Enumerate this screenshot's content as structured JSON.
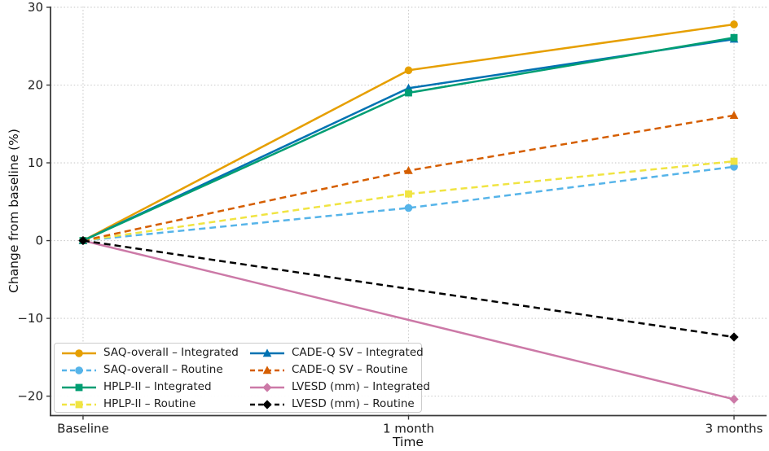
{
  "figure": {
    "background": "#ffffff"
  },
  "chart_data": {
    "type": "line",
    "title": "",
    "xlabel": "Time",
    "ylabel": "Change from baseline (%)",
    "categories": [
      "Baseline",
      "1 month",
      "3 months"
    ],
    "y_ticks": [
      30,
      20,
      10,
      0,
      -10,
      -20
    ],
    "ylim": [
      -22.5,
      30.1
    ],
    "xlim_units": [
      -0.1,
      2.1
    ],
    "grid": "dotted, both axes",
    "legend_position": "lower left, 2 columns",
    "series": [
      {
        "name": "SAQ-overall – Integrated",
        "color": "#E69F00",
        "line": "solid",
        "marker": "circle",
        "values": [
          0,
          21.9,
          27.8
        ]
      },
      {
        "name": "SAQ-overall – Routine",
        "color": "#56B4E9",
        "line": "dashed",
        "marker": "circle",
        "values": [
          0,
          4.2,
          9.5
        ]
      },
      {
        "name": "HPLP-II – Integrated",
        "color": "#009E73",
        "line": "solid",
        "marker": "square",
        "values": [
          0,
          19.0,
          26.1
        ]
      },
      {
        "name": "HPLP-II – Routine",
        "color": "#F0E442",
        "line": "dashed",
        "marker": "square",
        "values": [
          0,
          6.0,
          10.2
        ]
      },
      {
        "name": "CADE-Q SV – Integrated",
        "color": "#0072B2",
        "line": "solid",
        "marker": "triangle",
        "values": [
          0,
          19.6,
          25.9
        ]
      },
      {
        "name": "CADE-Q SV – Routine",
        "color": "#D55E00",
        "line": "dashed",
        "marker": "triangle",
        "values": [
          0,
          9.0,
          16.1
        ]
      },
      {
        "name": "LVESD (mm) – Integrated",
        "color": "#CC79A7",
        "line": "solid",
        "marker": "diamond",
        "values": [
          0,
          null,
          -20.4
        ]
      },
      {
        "name": "LVESD (mm) – Routine",
        "color": "#000000",
        "line": "dashed",
        "marker": "diamond",
        "values": [
          0,
          null,
          -12.4
        ]
      }
    ]
  },
  "colors": {
    "spine": "#3a3a3a",
    "grid": "#c9c9c9",
    "tick_label": "#1c1c1c"
  }
}
